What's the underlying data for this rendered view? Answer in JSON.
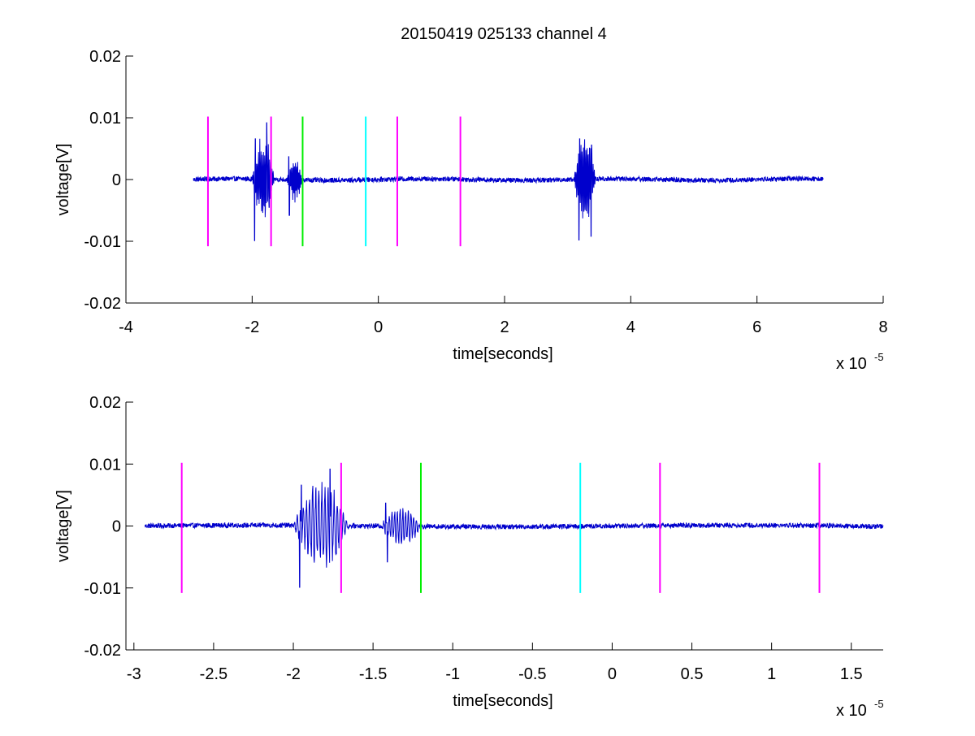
{
  "figure": {
    "title": "20150419 025133 channel 4"
  },
  "colors": {
    "signal": "#0000cc",
    "magenta": "#ff00ff",
    "green": "#00ee00",
    "cyan": "#00ffff",
    "axis": "#000000"
  },
  "chart_data": [
    {
      "type": "line",
      "title": "20150419 025133 channel 4",
      "xlabel": "time[seconds]",
      "ylabel": "voltage[V]",
      "x_exponent_label": "x 10",
      "x_exponent": "-5",
      "xlim": [
        -4e-05,
        8e-05
      ],
      "ylim": [
        -0.02,
        0.02
      ],
      "x_ticks": [
        -4e-05,
        -2e-05,
        0,
        2e-05,
        4e-05,
        6e-05,
        8e-05
      ],
      "x_tick_labels": [
        "-4",
        "-2",
        "0",
        "2",
        "4",
        "6",
        "8"
      ],
      "y_ticks": [
        -0.02,
        -0.01,
        0,
        0.01,
        0.02
      ],
      "y_tick_labels": [
        "-0.02",
        "-0.01",
        "0",
        "0.01",
        "0.02"
      ],
      "grid": false,
      "signal": {
        "x_range": [
          -2.93e-05,
          7.05e-05
        ],
        "baseline_noise": 0.0004,
        "bursts": [
          {
            "start": -2e-05,
            "end": -1.65e-05,
            "amplitude": 0.0075,
            "peaks": [
              [
                -1.96e-05,
                -0.0099
              ],
              [
                -1.95e-05,
                0.0066
              ],
              [
                -1.77e-05,
                0.0092
              ],
              [
                -1.73e-05,
                -0.0045
              ]
            ]
          },
          {
            "start": -1.45e-05,
            "end": -1.2e-05,
            "amplitude": 0.0035,
            "peaks": [
              [
                -1.42e-05,
                0.0037
              ],
              [
                -1.41e-05,
                -0.0058
              ]
            ]
          },
          {
            "start": 3.1e-05,
            "end": 3.45e-05,
            "amplitude": 0.008,
            "peaks": [
              [
                3.18e-05,
                -0.0098
              ],
              [
                3.19e-05,
                0.0066
              ],
              [
                3.38e-05,
                0.0056
              ],
              [
                3.37e-05,
                -0.0092
              ]
            ]
          }
        ]
      },
      "markers": [
        {
          "x": -2.7e-05,
          "color": "magenta",
          "y_range": [
            -0.0108,
            0.0102
          ]
        },
        {
          "x": -1.7e-05,
          "color": "magenta",
          "y_range": [
            -0.0108,
            0.0102
          ]
        },
        {
          "x": -1.2e-05,
          "color": "green",
          "y_range": [
            -0.0108,
            0.0102
          ]
        },
        {
          "x": -2e-06,
          "color": "cyan",
          "y_range": [
            -0.0108,
            0.0102
          ]
        },
        {
          "x": 3e-06,
          "color": "magenta",
          "y_range": [
            -0.0108,
            0.0102
          ]
        },
        {
          "x": 1.3e-05,
          "color": "magenta",
          "y_range": [
            -0.0108,
            0.0102
          ]
        }
      ]
    },
    {
      "type": "line",
      "title": "",
      "xlabel": "time[seconds]",
      "ylabel": "voltage[V]",
      "x_exponent_label": "x 10",
      "x_exponent": "-5",
      "xlim": [
        -3.05e-05,
        1.7e-05
      ],
      "ylim": [
        -0.02,
        0.02
      ],
      "x_ticks": [
        -3e-05,
        -2.5e-05,
        -2e-05,
        -1.5e-05,
        -1e-05,
        -5e-06,
        0,
        5e-06,
        1e-05,
        1.5e-05
      ],
      "x_tick_labels": [
        "-3",
        "-2.5",
        "-2",
        "-1.5",
        "-1",
        "-0.5",
        "0",
        "0.5",
        "1",
        "1.5"
      ],
      "y_ticks": [
        -0.02,
        -0.01,
        0,
        0.01,
        0.02
      ],
      "y_tick_labels": [
        "-0.02",
        "-0.01",
        "0",
        "0.01",
        "0.02"
      ],
      "grid": false,
      "signal": {
        "x_range": [
          -2.93e-05,
          1.7e-05
        ],
        "baseline_noise": 0.0004,
        "bursts": [
          {
            "start": -2e-05,
            "end": -1.65e-05,
            "amplitude": 0.0075,
            "peaks": [
              [
                -1.96e-05,
                -0.0099
              ],
              [
                -1.95e-05,
                0.0066
              ],
              [
                -1.77e-05,
                0.0092
              ],
              [
                -1.73e-05,
                -0.0045
              ]
            ]
          },
          {
            "start": -1.45e-05,
            "end": -1.2e-05,
            "amplitude": 0.0035,
            "peaks": [
              [
                -1.42e-05,
                0.0037
              ],
              [
                -1.41e-05,
                -0.0058
              ]
            ]
          }
        ]
      },
      "markers": [
        {
          "x": -2.7e-05,
          "color": "magenta",
          "y_range": [
            -0.0108,
            0.0102
          ]
        },
        {
          "x": -1.7e-05,
          "color": "magenta",
          "y_range": [
            -0.0108,
            0.0102
          ]
        },
        {
          "x": -1.2e-05,
          "color": "green",
          "y_range": [
            -0.0108,
            0.0102
          ]
        },
        {
          "x": -2e-06,
          "color": "cyan",
          "y_range": [
            -0.0108,
            0.0102
          ]
        },
        {
          "x": 3e-06,
          "color": "magenta",
          "y_range": [
            -0.0108,
            0.0102
          ]
        },
        {
          "x": 1.3e-05,
          "color": "magenta",
          "y_range": [
            -0.0108,
            0.0102
          ]
        }
      ]
    }
  ]
}
